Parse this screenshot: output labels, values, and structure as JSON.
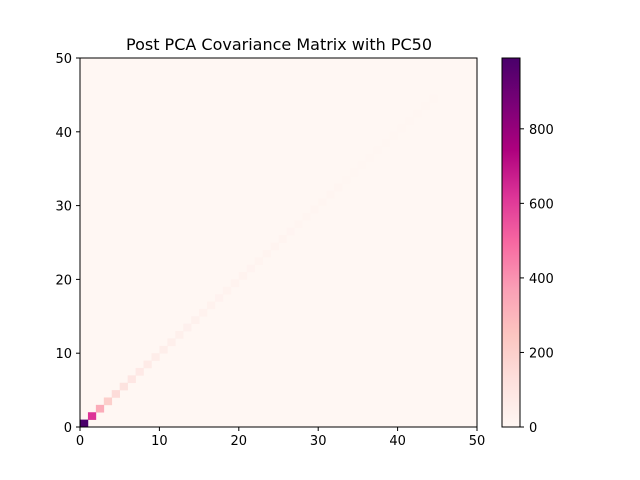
{
  "chart_data": {
    "type": "heatmap",
    "title": "Post PCA Covariance Matrix with PC50",
    "xlabel": "",
    "ylabel": "",
    "xlim": [
      0,
      50
    ],
    "ylim": [
      0,
      50
    ],
    "x_ticks": [
      "0",
      "10",
      "20",
      "30",
      "40",
      "50"
    ],
    "y_ticks": [
      "0",
      "10",
      "20",
      "30",
      "40",
      "50"
    ],
    "grid": false,
    "colormap": "RdPu",
    "colorbar": {
      "range": [
        0,
        990
      ],
      "ticks": [
        "0",
        "200",
        "400",
        "600",
        "800"
      ],
      "tick_values": [
        0,
        200,
        400,
        600,
        800
      ]
    },
    "matrix_size": 50,
    "off_diagonal_value": 0,
    "diagonal_values": [
      990,
      620,
      330,
      200,
      140,
      110,
      90,
      75,
      65,
      55,
      48,
      43,
      39,
      35,
      32,
      29,
      27,
      25,
      23,
      21,
      20,
      19,
      18,
      17,
      16,
      15,
      14,
      13,
      12,
      11,
      10,
      9,
      9,
      8,
      8,
      7,
      7,
      6,
      6,
      5,
      5,
      4,
      4,
      3,
      3,
      2,
      2,
      2,
      1,
      1
    ]
  }
}
